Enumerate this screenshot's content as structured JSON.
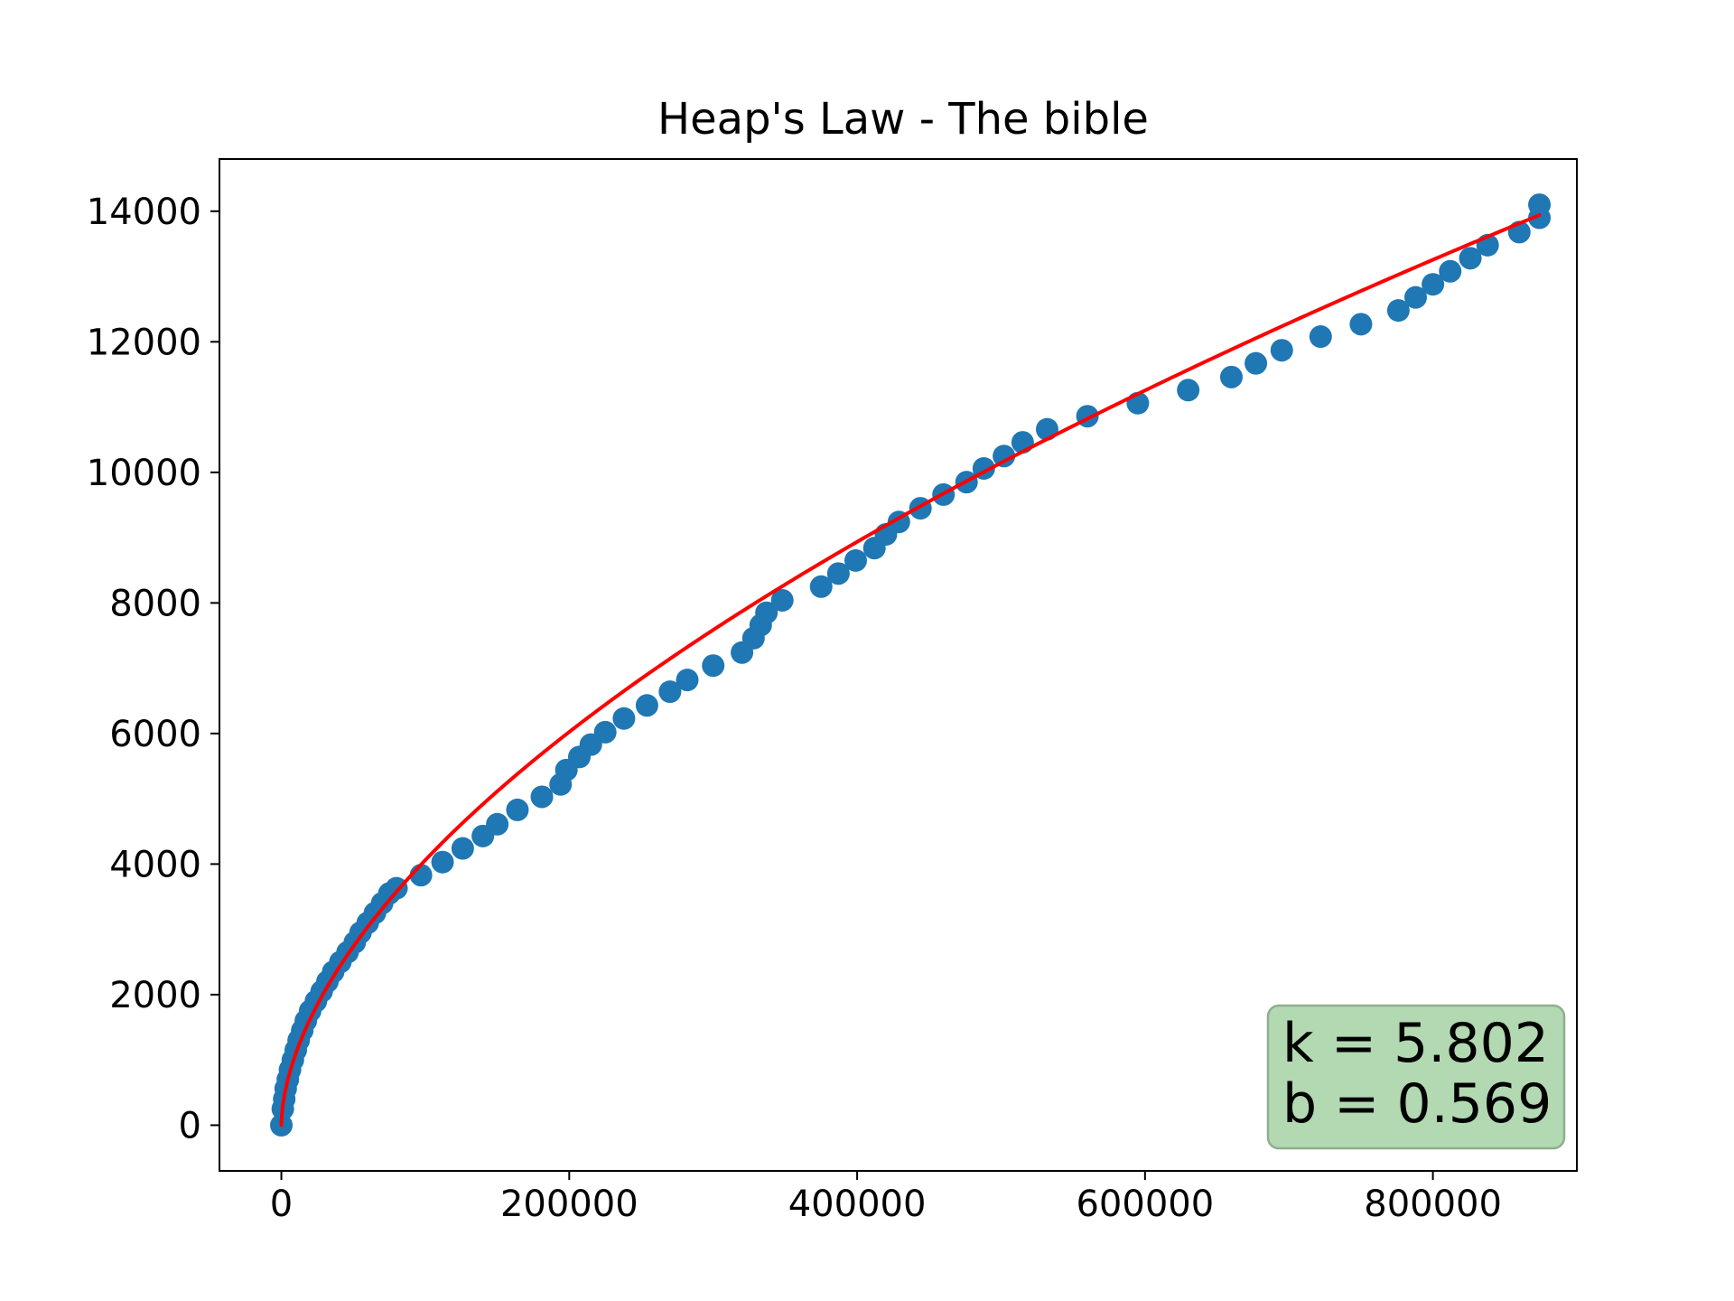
{
  "chart_data": {
    "type": "scatter",
    "title": "Heap's Law - The bible",
    "xlabel": "",
    "ylabel": "",
    "xlim": [
      -43000,
      900000
    ],
    "ylim": [
      -700,
      14800
    ],
    "x_ticks": [
      0,
      200000,
      400000,
      600000,
      800000
    ],
    "y_ticks": [
      0,
      2000,
      4000,
      6000,
      8000,
      10000,
      12000,
      14000
    ],
    "grid": false,
    "legend": "none",
    "annotation": {
      "lines": [
        "k = 5.802",
        "b = 0.569"
      ],
      "position": "bottom-right",
      "background": "#b2d9b2"
    },
    "series": [
      {
        "kind": "scatter",
        "color": "#1f77b4",
        "points": [
          [
            0,
            0
          ],
          [
            1000,
            250
          ],
          [
            2000,
            400
          ],
          [
            3000,
            560
          ],
          [
            4500,
            700
          ],
          [
            6000,
            850
          ],
          [
            8000,
            1000
          ],
          [
            10000,
            1150
          ],
          [
            12000,
            1300
          ],
          [
            14500,
            1450
          ],
          [
            17000,
            1600
          ],
          [
            20000,
            1750
          ],
          [
            24000,
            1900
          ],
          [
            28000,
            2050
          ],
          [
            32000,
            2200
          ],
          [
            36000,
            2350
          ],
          [
            41000,
            2500
          ],
          [
            46000,
            2650
          ],
          [
            51000,
            2800
          ],
          [
            55000,
            2950
          ],
          [
            60000,
            3100
          ],
          [
            65000,
            3250
          ],
          [
            70000,
            3400
          ],
          [
            75000,
            3550
          ],
          [
            80000,
            3630
          ],
          [
            97000,
            3830
          ],
          [
            112000,
            4030
          ],
          [
            126000,
            4240
          ],
          [
            140000,
            4430
          ],
          [
            150000,
            4610
          ],
          [
            164000,
            4830
          ],
          [
            181000,
            5030
          ],
          [
            194000,
            5220
          ],
          [
            198000,
            5440
          ],
          [
            207000,
            5640
          ],
          [
            215000,
            5830
          ],
          [
            225000,
            6020
          ],
          [
            238000,
            6230
          ],
          [
            254000,
            6430
          ],
          [
            270000,
            6640
          ],
          [
            282000,
            6820
          ],
          [
            300000,
            7040
          ],
          [
            320000,
            7240
          ],
          [
            328000,
            7460
          ],
          [
            333000,
            7660
          ],
          [
            337000,
            7850
          ],
          [
            348000,
            8040
          ],
          [
            375000,
            8250
          ],
          [
            387000,
            8450
          ],
          [
            399000,
            8650
          ],
          [
            412000,
            8840
          ],
          [
            420000,
            9050
          ],
          [
            429000,
            9240
          ],
          [
            444000,
            9450
          ],
          [
            460000,
            9660
          ],
          [
            476000,
            9850
          ],
          [
            488000,
            10060
          ],
          [
            502000,
            10250
          ],
          [
            515000,
            10460
          ],
          [
            532000,
            10660
          ],
          [
            560000,
            10860
          ],
          [
            595000,
            11060
          ],
          [
            630000,
            11260
          ],
          [
            660000,
            11460
          ],
          [
            677000,
            11670
          ],
          [
            695000,
            11870
          ],
          [
            722000,
            12080
          ],
          [
            750000,
            12270
          ],
          [
            776000,
            12480
          ],
          [
            788000,
            12680
          ],
          [
            800000,
            12880
          ],
          [
            812000,
            13080
          ],
          [
            826000,
            13280
          ],
          [
            838000,
            13480
          ],
          [
            860000,
            13680
          ],
          [
            874000,
            13900
          ],
          [
            874000,
            14100
          ]
        ]
      },
      {
        "kind": "line",
        "color": "#ff0000",
        "k": 5.802,
        "b": 0.569,
        "x_max": 874000
      }
    ]
  }
}
